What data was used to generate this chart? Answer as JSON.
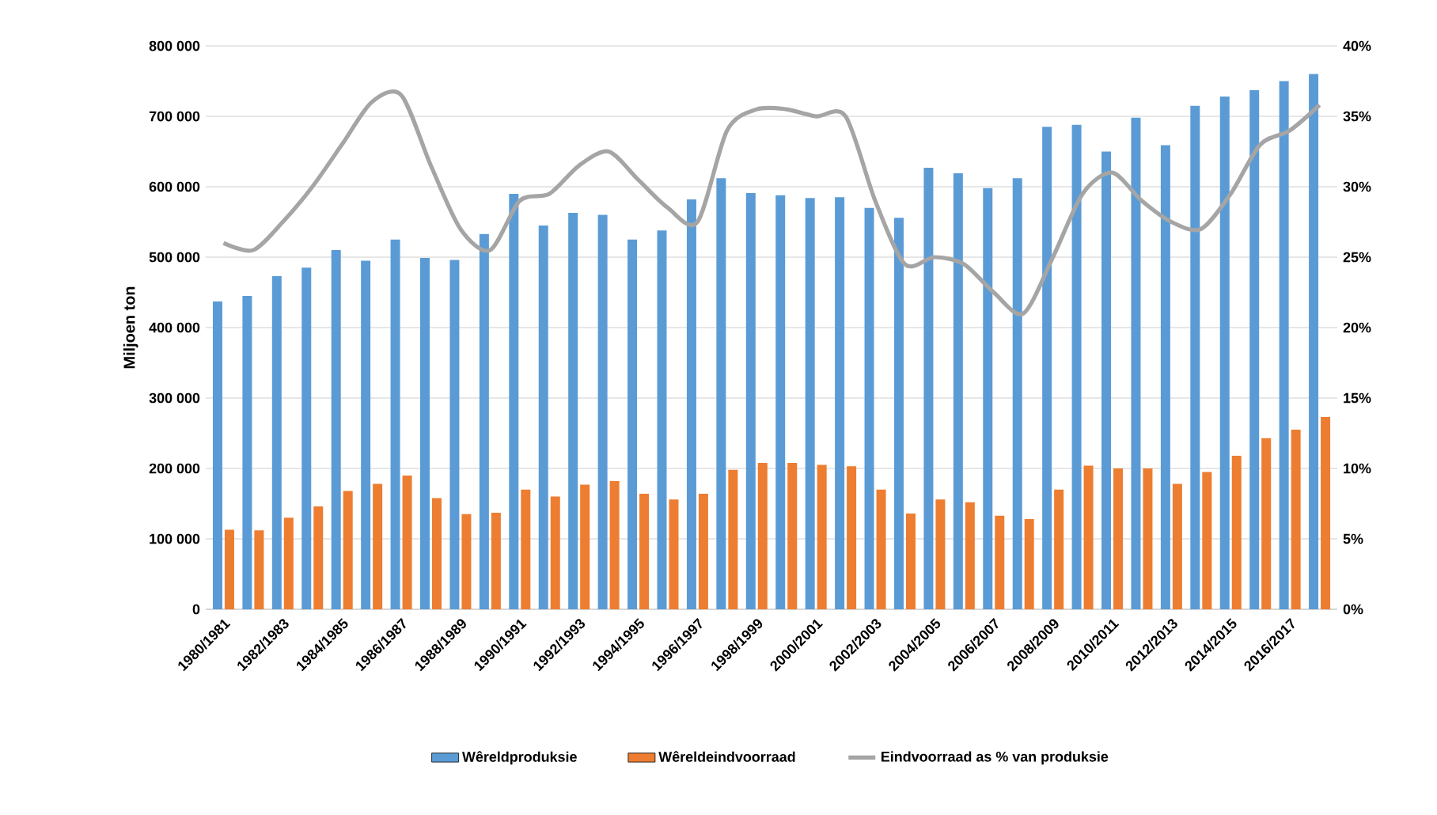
{
  "chart_data": {
    "type": "bar",
    "ylabel": "Miljoen ton",
    "categories": [
      "1980/1981",
      null,
      "1982/1983",
      null,
      "1984/1985",
      null,
      "1986/1987",
      null,
      "1988/1989",
      null,
      "1990/1991",
      null,
      "1992/1993",
      null,
      "1994/1995",
      null,
      "1996/1997",
      null,
      "1998/1999",
      null,
      "2000/2001",
      null,
      "2002/2003",
      null,
      "2004/2005",
      null,
      "2006/2007",
      null,
      "2008/2009",
      null,
      "2010/2011",
      null,
      "2012/2013",
      null,
      "2014/2015",
      null,
      "2016/2017",
      null
    ],
    "series": [
      {
        "name": "Wêreldproduksie",
        "color": "#5b9bd5",
        "values": [
          437000,
          445000,
          473000,
          485000,
          510000,
          495000,
          525000,
          499000,
          496000,
          533000,
          590000,
          545000,
          563000,
          560000,
          525000,
          538000,
          582000,
          612000,
          591000,
          588000,
          584000,
          585000,
          570000,
          556000,
          627000,
          619000,
          598000,
          612000,
          685000,
          688000,
          650000,
          698000,
          659000,
          715000,
          728000,
          737000,
          750000,
          760000
        ]
      },
      {
        "name": "Wêreldeindvoorraad",
        "color": "#ed7d31",
        "values": [
          113000,
          112000,
          130000,
          146000,
          168000,
          178000,
          190000,
          158000,
          135000,
          137000,
          170000,
          160000,
          177000,
          182000,
          164000,
          156000,
          164000,
          198000,
          208000,
          208000,
          205000,
          203000,
          170000,
          136000,
          156000,
          152000,
          133000,
          128000,
          170000,
          204000,
          200000,
          200000,
          178000,
          195000,
          218000,
          243000,
          255000,
          273000
        ]
      },
      {
        "name": "Eindvoorraad as % van produksie",
        "type": "line",
        "axis": "y2",
        "color": "#a5a5a5",
        "values": [
          26,
          25.5,
          27.5,
          30,
          33,
          36,
          36.5,
          31.5,
          27,
          25.5,
          29,
          29.5,
          31.5,
          32.5,
          30.5,
          28.5,
          27.5,
          34,
          35.5,
          35.5,
          35,
          35,
          29,
          24.5,
          25,
          24.5,
          22.5,
          21,
          25,
          29.5,
          31,
          29,
          27.5,
          27,
          29.5,
          33,
          34,
          35.8
        ]
      }
    ],
    "ylim": [
      0,
      800000
    ],
    "yticks": [
      {
        "value": 0,
        "label": "0"
      },
      {
        "value": 100000,
        "label": "100 000"
      },
      {
        "value": 200000,
        "label": "200 000"
      },
      {
        "value": 300000,
        "label": "300 000"
      },
      {
        "value": 400000,
        "label": "400 000"
      },
      {
        "value": 500000,
        "label": "500 000"
      },
      {
        "value": 600000,
        "label": "600 000"
      },
      {
        "value": 700000,
        "label": "700 000"
      },
      {
        "value": 800000,
        "label": "800 000"
      }
    ],
    "y2lim": [
      0,
      40
    ],
    "y2ticks": [
      {
        "value": 0,
        "label": "0%"
      },
      {
        "value": 5,
        "label": "5%"
      },
      {
        "value": 10,
        "label": "10%"
      },
      {
        "value": 15,
        "label": "15%"
      },
      {
        "value": 20,
        "label": "20%"
      },
      {
        "value": 25,
        "label": "25%"
      },
      {
        "value": 30,
        "label": "30%"
      },
      {
        "value": 35,
        "label": "35%"
      },
      {
        "value": 40,
        "label": "40%"
      }
    ],
    "grid": "y",
    "legend": "bottom"
  }
}
